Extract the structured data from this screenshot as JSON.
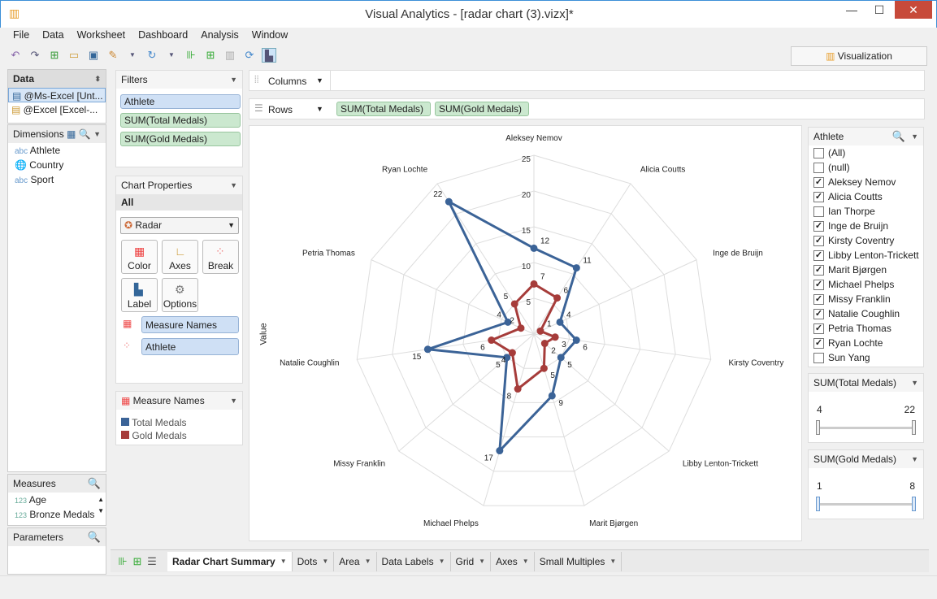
{
  "window": {
    "title": "Visual Analytics - [radar chart (3).vizx]*",
    "minimize": "—",
    "maximize": "☐",
    "close": "✕"
  },
  "menu": [
    "File",
    "Data",
    "Worksheet",
    "Dashboard",
    "Analysis",
    "Window"
  ],
  "viz_tab": "Visualization",
  "data_panel": {
    "title": "Data",
    "sources": [
      "@Ms-Excel [Unt...",
      "@Excel [Excel-..."
    ]
  },
  "dimensions": {
    "title": "Dimensions",
    "items": [
      {
        "type": "abc",
        "label": "Athlete"
      },
      {
        "type": "globe",
        "label": "Country"
      },
      {
        "type": "abc",
        "label": "Sport"
      }
    ]
  },
  "measures": {
    "title": "Measures",
    "items": [
      {
        "type": "123",
        "label": "Age"
      },
      {
        "type": "123",
        "label": "Bronze Medals"
      }
    ]
  },
  "parameters": {
    "title": "Parameters"
  },
  "filters": {
    "title": "Filters",
    "items": [
      "Athlete",
      "SUM(Total Medals)",
      "SUM(Gold Medals)"
    ]
  },
  "chart_properties": {
    "title": "Chart Properties",
    "all": "All",
    "chart_type": "Radar",
    "buttons": [
      "Color",
      "Axes",
      "Break",
      "Label",
      "Options"
    ],
    "marks": [
      "Measure Names",
      "Athlete"
    ]
  },
  "legend": {
    "title": "Measure Names",
    "items": [
      {
        "label": "Total Medals",
        "color": "#3b6397"
      },
      {
        "label": "Gold Medals",
        "color": "#a63c3a"
      }
    ]
  },
  "shelves": {
    "columns": "Columns",
    "rows": "Rows",
    "row_pills": [
      "SUM(Total Medals)",
      "SUM(Gold Medals)"
    ]
  },
  "athlete_filter": {
    "title": "Athlete",
    "items": [
      {
        "label": "(All)",
        "checked": false
      },
      {
        "label": "(null)",
        "checked": false
      },
      {
        "label": "Aleksey Nemov",
        "checked": true
      },
      {
        "label": "Alicia Coutts",
        "checked": true
      },
      {
        "label": "Ian Thorpe",
        "checked": false
      },
      {
        "label": "Inge de Bruijn",
        "checked": true
      },
      {
        "label": "Kirsty Coventry",
        "checked": true
      },
      {
        "label": "Libby Lenton-Trickett",
        "checked": true
      },
      {
        "label": "Marit Bjørgen",
        "checked": true
      },
      {
        "label": "Michael Phelps",
        "checked": true
      },
      {
        "label": "Missy Franklin",
        "checked": true
      },
      {
        "label": "Natalie Coughlin",
        "checked": true
      },
      {
        "label": "Petria Thomas",
        "checked": true
      },
      {
        "label": "Ryan Lochte",
        "checked": true
      },
      {
        "label": "Sun Yang",
        "checked": false
      }
    ]
  },
  "total_filter": {
    "title": "SUM(Total Medals)",
    "min": "4",
    "max": "22"
  },
  "gold_filter": {
    "title": "SUM(Gold Medals)",
    "min": "1",
    "max": "8"
  },
  "sheet_tabs": [
    "Radar Chart Summary",
    "Dots",
    "Area",
    "Data Labels",
    "Grid",
    "Axes",
    "Small Multiples"
  ],
  "chart_data": {
    "type": "radar",
    "ylabel": "Value",
    "rmax": 25,
    "ticks": [
      5,
      10,
      15,
      20,
      25
    ],
    "categories": [
      "Aleksey Nemov",
      "Alicia Coutts",
      "Inge de Bruijn",
      "Kirsty Coventry",
      "Libby Lenton-Trickett",
      "Marit Bjørgen",
      "Michael Phelps",
      "Missy Franklin",
      "Natalie Coughlin",
      "Petria Thomas",
      "Ryan Lochte"
    ],
    "series": [
      {
        "name": "Total Medals",
        "color": "#3b6397",
        "values": [
          12,
          11,
          4,
          6,
          5,
          9,
          17,
          5,
          15,
          4,
          22
        ]
      },
      {
        "name": "Gold Medals",
        "color": "#a63c3a",
        "values": [
          7,
          6,
          1,
          3,
          2,
          5,
          8,
          4,
          6,
          2,
          5
        ]
      }
    ]
  }
}
